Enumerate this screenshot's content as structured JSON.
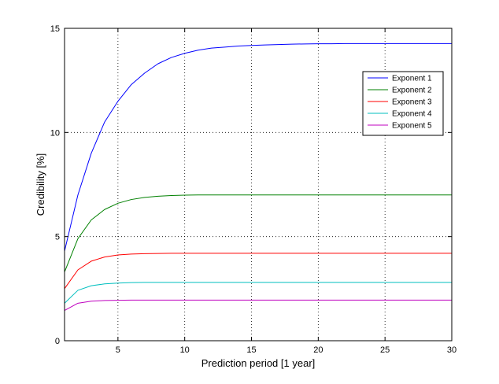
{
  "chart_data": {
    "type": "line",
    "title": "",
    "xlabel": "Prediction period [1 year]",
    "ylabel": "Credibility [%]",
    "xlim": [
      1,
      30
    ],
    "ylim": [
      0,
      15
    ],
    "xticks": [
      5,
      10,
      15,
      20,
      25,
      30
    ],
    "yticks": [
      0,
      5,
      10,
      15
    ],
    "xtick_labels": [
      "5",
      "10",
      "15",
      "20",
      "25",
      "30"
    ],
    "ytick_labels": [
      "0",
      "5",
      "10",
      "15"
    ],
    "grid": true,
    "legend_position": "top-right",
    "x": [
      1,
      2,
      3,
      4,
      5,
      6,
      7,
      8,
      9,
      10,
      11,
      12,
      13,
      14,
      15,
      16,
      17,
      18,
      19,
      20,
      21,
      22,
      23,
      24,
      25,
      26,
      27,
      28,
      29,
      30
    ],
    "series": [
      {
        "name": "Exponent 1",
        "color": "#0000ff",
        "values": [
          4.3,
          7.0,
          9.0,
          10.5,
          11.5,
          12.3,
          12.85,
          13.3,
          13.6,
          13.8,
          13.95,
          14.05,
          14.1,
          14.15,
          14.18,
          14.2,
          14.22,
          14.24,
          14.25,
          14.26,
          14.26,
          14.27,
          14.27,
          14.27,
          14.27,
          14.27,
          14.27,
          14.27,
          14.27,
          14.27
        ]
      },
      {
        "name": "Exponent 2",
        "color": "#008000",
        "values": [
          3.3,
          4.9,
          5.8,
          6.3,
          6.6,
          6.78,
          6.88,
          6.94,
          6.97,
          6.99,
          7.0,
          7.0,
          7.0,
          7.0,
          7.0,
          7.0,
          7.0,
          7.0,
          7.0,
          7.0,
          7.0,
          7.0,
          7.0,
          7.0,
          7.0,
          7.0,
          7.0,
          7.0,
          7.0,
          7.0
        ]
      },
      {
        "name": "Exponent 3",
        "color": "#ff0000",
        "values": [
          2.5,
          3.4,
          3.82,
          4.02,
          4.12,
          4.16,
          4.18,
          4.19,
          4.2,
          4.2,
          4.2,
          4.2,
          4.2,
          4.2,
          4.2,
          4.2,
          4.2,
          4.2,
          4.2,
          4.2,
          4.2,
          4.2,
          4.2,
          4.2,
          4.2,
          4.2,
          4.2,
          4.2,
          4.2,
          4.2
        ]
      },
      {
        "name": "Exponent 4",
        "color": "#00bfbf",
        "values": [
          1.8,
          2.42,
          2.64,
          2.73,
          2.77,
          2.79,
          2.8,
          2.8,
          2.8,
          2.8,
          2.8,
          2.8,
          2.8,
          2.8,
          2.8,
          2.8,
          2.8,
          2.8,
          2.8,
          2.8,
          2.8,
          2.8,
          2.8,
          2.8,
          2.8,
          2.8,
          2.8,
          2.8,
          2.8,
          2.8
        ]
      },
      {
        "name": "Exponent 5",
        "color": "#bf00bf",
        "values": [
          1.45,
          1.8,
          1.9,
          1.93,
          1.94,
          1.95,
          1.95,
          1.95,
          1.95,
          1.95,
          1.95,
          1.95,
          1.95,
          1.95,
          1.95,
          1.95,
          1.95,
          1.95,
          1.95,
          1.95,
          1.95,
          1.95,
          1.95,
          1.95,
          1.95,
          1.95,
          1.95,
          1.95,
          1.95,
          1.95
        ]
      }
    ]
  }
}
